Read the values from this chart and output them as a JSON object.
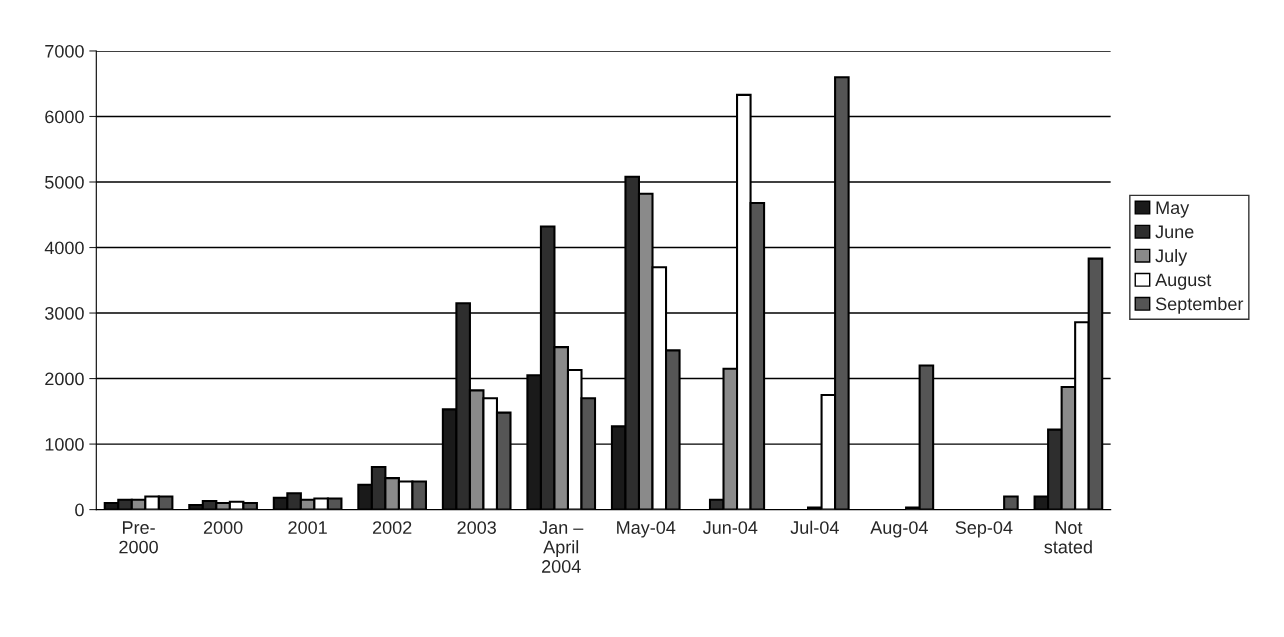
{
  "chart_data": {
    "type": "bar",
    "categories": [
      "Pre-\n2000",
      "2000",
      "2001",
      "2002",
      "2003",
      "Jan –\nApril\n2004",
      "May-04",
      "Jun-04",
      "Jul-04",
      "Aug-04",
      "Sep-04",
      "Not\nstated"
    ],
    "series": [
      {
        "name": "May",
        "color": "#1a1a1a",
        "values": [
          100,
          70,
          180,
          380,
          1530,
          2050,
          1270,
          null,
          null,
          null,
          null,
          200
        ]
      },
      {
        "name": "June",
        "color": "#2e2e2e",
        "values": [
          150,
          130,
          250,
          650,
          3150,
          4320,
          5080,
          150,
          null,
          null,
          null,
          1220
        ]
      },
      {
        "name": "July",
        "color": "#8a8a8a",
        "values": [
          150,
          100,
          150,
          480,
          1820,
          2480,
          4820,
          2150,
          30,
          null,
          null,
          1870
        ]
      },
      {
        "name": "August",
        "color": "#ffffff",
        "values": [
          200,
          120,
          170,
          430,
          1700,
          2130,
          3700,
          6330,
          1750,
          30,
          null,
          2860
        ]
      },
      {
        "name": "September",
        "color": "#555555",
        "values": [
          200,
          100,
          170,
          430,
          1480,
          1700,
          2430,
          4680,
          6600,
          2200,
          200,
          3830
        ]
      }
    ],
    "ylim": [
      0,
      7000
    ],
    "yticks": [
      0,
      1000,
      2000,
      3000,
      4000,
      5000,
      6000,
      7000
    ],
    "grid": "y",
    "legend": "right"
  }
}
